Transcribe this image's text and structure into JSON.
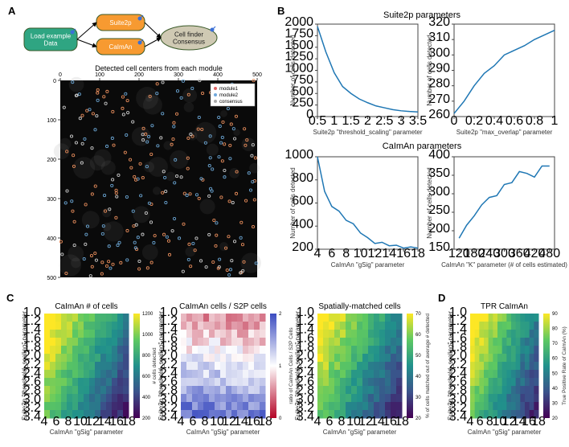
{
  "panelA": {
    "label": "A",
    "flow": {
      "nodes": {
        "load": {
          "label": "Load example\nData",
          "fill": "#2fa582",
          "shape": "rect-round",
          "textcolor": "white"
        },
        "suite2p": {
          "label": "Suite2p",
          "fill": "#f79a31",
          "shape": "rect-round",
          "textcolor": "white"
        },
        "caiman": {
          "label": "CaImAn",
          "fill": "#f79a31",
          "shape": "rect-round",
          "textcolor": "white"
        },
        "consensus": {
          "label": "Cell finder\nConsensus",
          "fill": "#cfc9b3",
          "shape": "ellipse",
          "textcolor": "#1a1a1a"
        }
      },
      "edges": [
        [
          "load",
          "suite2p"
        ],
        [
          "load",
          "caiman"
        ],
        [
          "suite2p",
          "consensus"
        ],
        [
          "caiman",
          "consensus"
        ]
      ]
    },
    "scatter": {
      "title": "Detected cell centers from each module",
      "xlim": [
        0,
        500
      ],
      "ylim": [
        0,
        500
      ],
      "xtick": 100,
      "ytick": 100,
      "bgcolor": "#0a0a0a",
      "legend": [
        "module1",
        "module2",
        "consensus"
      ],
      "legend_colors": [
        "#e06666",
        "#6fa8dc",
        "#aaaaaa"
      ],
      "dot_colors": {
        "m1": "#e28a5a",
        "m2": "#69a2cf",
        "both": "#c8c8c8"
      },
      "n_points": 260
    }
  },
  "panelB": {
    "label": "B",
    "row1_title": "Suite2p parameters",
    "row2_title": "CaImAn parameters",
    "plots": [
      {
        "xlabel": "Suite2p \"threshold_scaling\" parameter",
        "ylabel": "Number of cells detected",
        "xlim": [
          0.5,
          3.5
        ],
        "xtick": 0.5,
        "ylim": [
          0,
          2000
        ],
        "ytick": 250,
        "data": [
          [
            0.5,
            1950
          ],
          [
            0.75,
            1400
          ],
          [
            1.0,
            950
          ],
          [
            1.25,
            650
          ],
          [
            1.5,
            500
          ],
          [
            1.75,
            380
          ],
          [
            2.0,
            300
          ],
          [
            2.25,
            230
          ],
          [
            2.5,
            190
          ],
          [
            2.75,
            150
          ],
          [
            3.0,
            125
          ],
          [
            3.25,
            110
          ],
          [
            3.5,
            100
          ]
        ]
      },
      {
        "xlabel": "Suite2p \"max_overlap\" parameter",
        "ylabel": "Number of cells detected",
        "xlim": [
          0,
          1
        ],
        "xtick": 0.2,
        "ylim": [
          260,
          320
        ],
        "ytick": 10,
        "data": [
          [
            0.0,
            262
          ],
          [
            0.1,
            270
          ],
          [
            0.2,
            280
          ],
          [
            0.3,
            288
          ],
          [
            0.4,
            293
          ],
          [
            0.5,
            300
          ],
          [
            0.6,
            303
          ],
          [
            0.7,
            306
          ],
          [
            0.8,
            310
          ],
          [
            0.9,
            313
          ],
          [
            1.0,
            316
          ]
        ]
      },
      {
        "xlabel": "CaImAn \"gSig\" parameter",
        "ylabel": "Number of cells detected",
        "xlim": [
          4,
          18
        ],
        "xtick": 2,
        "ylim": [
          200,
          1000
        ],
        "ytick": 200,
        "data": [
          [
            4,
            1000
          ],
          [
            5,
            700
          ],
          [
            6,
            570
          ],
          [
            7,
            530
          ],
          [
            8,
            450
          ],
          [
            9,
            420
          ],
          [
            10,
            340
          ],
          [
            11,
            300
          ],
          [
            12,
            250
          ],
          [
            13,
            260
          ],
          [
            14,
            230
          ],
          [
            15,
            235
          ],
          [
            16,
            210
          ],
          [
            17,
            220
          ],
          [
            18,
            210
          ]
        ]
      },
      {
        "xlabel": "CaImAn \"K\" parameter (# of cells estimated)",
        "ylabel": "Number of cells detected",
        "xlim": [
          100,
          500
        ],
        "xtick": 60,
        "ylim": [
          150,
          400
        ],
        "ytick": 50,
        "xticks_explicit": [
          120,
          180,
          240,
          300,
          360,
          420,
          480
        ],
        "data": [
          [
            120,
            180
          ],
          [
            150,
            215
          ],
          [
            180,
            240
          ],
          [
            210,
            270
          ],
          [
            240,
            290
          ],
          [
            270,
            295
          ],
          [
            300,
            325
          ],
          [
            330,
            330
          ],
          [
            360,
            360
          ],
          [
            390,
            355
          ],
          [
            420,
            345
          ],
          [
            450,
            375
          ],
          [
            480,
            375
          ]
        ]
      }
    ]
  },
  "panelC": {
    "label": "C",
    "heatmaps": [
      {
        "title": "CaImAn # of cells",
        "xlabel": "CaImAn \"gSig\" parameter",
        "ylabel": "Suite2p \"threshold_scaling\" parameter",
        "cbar_label": "# cells detected",
        "cmap": "viridis",
        "vmin": 200,
        "vmax": 1200,
        "vtick": 200,
        "xlim": [
          4,
          18
        ],
        "xtick": 2,
        "ylim": [
          1.0,
          3.4
        ],
        "ytick": 0.2
      },
      {
        "title": "CaImAn cells / S2P cells",
        "xlabel": "CaImAn \"gSig\" parameter",
        "ylabel": "Suite2p \"threshold_scaling\" parameter",
        "cbar_label": "ratio of CaImAn Cells / S2P Cells",
        "cmap": "bwr",
        "vmin": 0,
        "vmax": 2,
        "vtick": 1,
        "xlim": [
          4,
          18
        ],
        "xtick": 2,
        "ylim": [
          1.0,
          3.4
        ],
        "ytick": 0.2
      },
      {
        "title": "Spatially-matched cells",
        "xlabel": "CaImAn \"gSig\" parameter",
        "ylabel": "Suite2p \"threshold_scaling\" parameter",
        "cbar_label": "% of cells matched out of average # detected",
        "cmap": "viridis",
        "vmin": 20,
        "vmax": 70,
        "vtick": 10,
        "xlim": [
          4,
          18
        ],
        "xtick": 2,
        "ylim": [
          1.0,
          3.4
        ],
        "ytick": 0.2
      }
    ]
  },
  "panelD": {
    "label": "D",
    "heatmap": {
      "title": "TPR CaImAn",
      "xlabel": "CaImAn \"gSig\" parameter",
      "ylabel": "Suite2p \"threshold_scaling\" parameter",
      "cbar_label": "True Positive Rate of CaImAn (%)",
      "cmap": "viridis",
      "vmin": 20,
      "vmax": 90,
      "vtick": 10,
      "xlim": [
        4,
        18
      ],
      "xtick": 2,
      "ylim": [
        1.0,
        3.4
      ],
      "ytick": 0.2
    }
  }
}
